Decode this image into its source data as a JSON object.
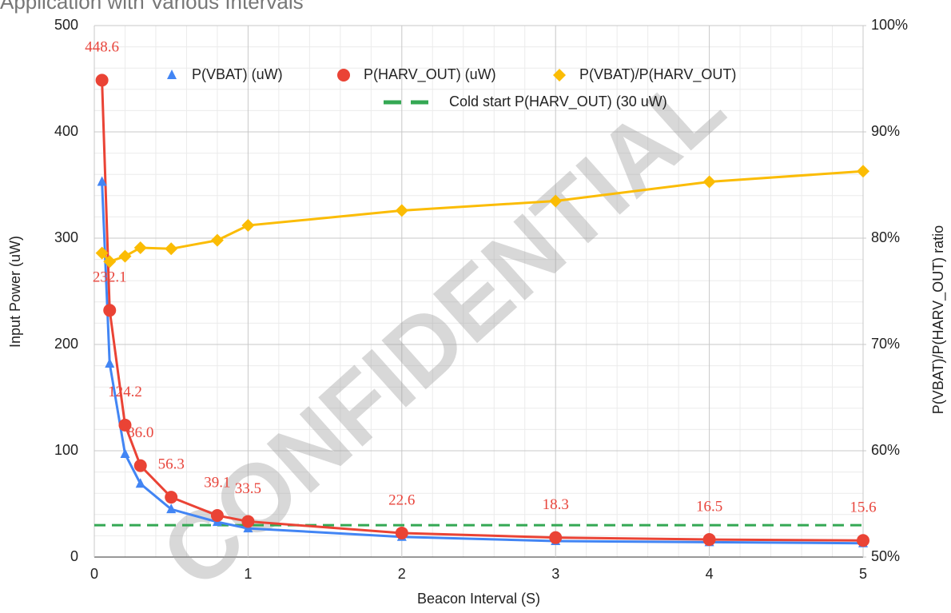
{
  "chart_data": {
    "type": "line",
    "title": "Application with Various Intervals",
    "watermark": "CONFIDENTIAL",
    "x_label": "Beacon Interval (S)",
    "y_label": "Input Power (uW)",
    "y2_label": "P(VBAT)/P(HARV_OUT) ratio",
    "x": [
      0.05,
      0.1,
      0.2,
      0.3,
      0.5,
      0.8,
      1,
      2,
      3,
      4,
      5
    ],
    "xlim": [
      0,
      5
    ],
    "xticks": [
      0,
      1,
      2,
      3,
      4,
      5
    ],
    "ylim": [
      0,
      500
    ],
    "yticks": [
      0,
      100,
      200,
      300,
      400,
      500
    ],
    "y2lim": [
      50,
      100
    ],
    "y2ticks": [
      {
        "value": 50,
        "label": "50%"
      },
      {
        "value": 60,
        "label": "60%"
      },
      {
        "value": 70,
        "label": "70%"
      },
      {
        "value": 80,
        "label": "80%"
      },
      {
        "value": 90,
        "label": "90%"
      },
      {
        "value": 100,
        "label": "100%"
      }
    ],
    "grid": true,
    "legend": "top",
    "series": [
      {
        "name": "P(VBAT) (uW)",
        "color": "#4285f4",
        "marker": "triangle",
        "values": [
          353,
          182,
          97,
          69,
          45,
          33,
          27,
          19,
          15,
          14,
          13
        ]
      },
      {
        "name": "P(HARV_OUT) (uW)",
        "color": "#ea4335",
        "marker": "circle",
        "values": [
          448.6,
          232.1,
          124.2,
          86.0,
          56.3,
          39.1,
          33.5,
          22.6,
          18.3,
          16.5,
          15.6
        ],
        "value_labels": [
          "448.6",
          "232.1",
          "124.2",
          "86.0",
          "56.3",
          "39.1",
          "33.5",
          "22.6",
          "18.3",
          "16.5",
          "15.6"
        ]
      },
      {
        "name": "P(VBAT)/P(HARV_OUT)",
        "color": "#fbbc04",
        "marker": "diamond",
        "axis": "y2",
        "values": [
          78.6,
          77.8,
          78.3,
          79.1,
          79.0,
          79.8,
          81.2,
          82.6,
          83.5,
          85.3,
          86.3
        ]
      }
    ],
    "reference_lines": [
      {
        "name": "Cold start P(HARV_OUT) (30 uW)",
        "value": 30,
        "color": "#34a853"
      }
    ]
  }
}
